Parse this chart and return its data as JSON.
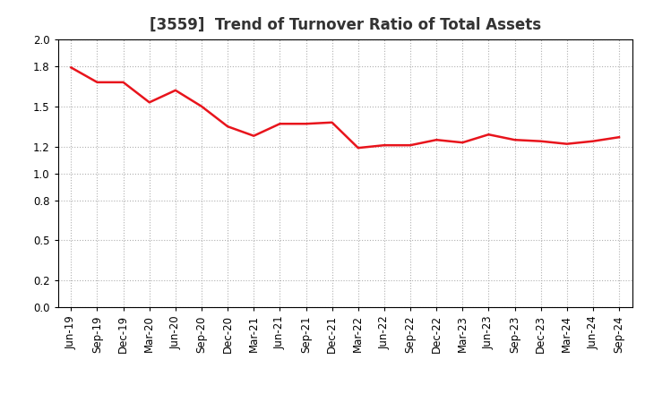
{
  "title": "[3559]  Trend of Turnover Ratio of Total Assets",
  "x_labels": [
    "Jun-19",
    "Sep-19",
    "Dec-19",
    "Mar-20",
    "Jun-20",
    "Sep-20",
    "Dec-20",
    "Mar-21",
    "Jun-21",
    "Sep-21",
    "Dec-21",
    "Mar-22",
    "Jun-22",
    "Sep-22",
    "Dec-22",
    "Mar-23",
    "Jun-23",
    "Sep-23",
    "Dec-23",
    "Mar-24",
    "Jun-24",
    "Sep-24"
  ],
  "values": [
    1.79,
    1.68,
    1.68,
    1.53,
    1.62,
    1.5,
    1.35,
    1.28,
    1.37,
    1.37,
    1.38,
    1.19,
    1.21,
    1.21,
    1.25,
    1.23,
    1.29,
    1.25,
    1.24,
    1.22,
    1.24,
    1.27
  ],
  "line_color": "#e8141c",
  "line_width": 1.8,
  "ylim": [
    0.0,
    2.0
  ],
  "yticks": [
    0.0,
    0.2,
    0.5,
    0.8,
    1.0,
    1.2,
    1.5,
    1.8,
    2.0
  ],
  "background_color": "#ffffff",
  "grid_color": "#b0b0b0",
  "title_fontsize": 12,
  "tick_fontsize": 8.5,
  "title_color": "#333333"
}
